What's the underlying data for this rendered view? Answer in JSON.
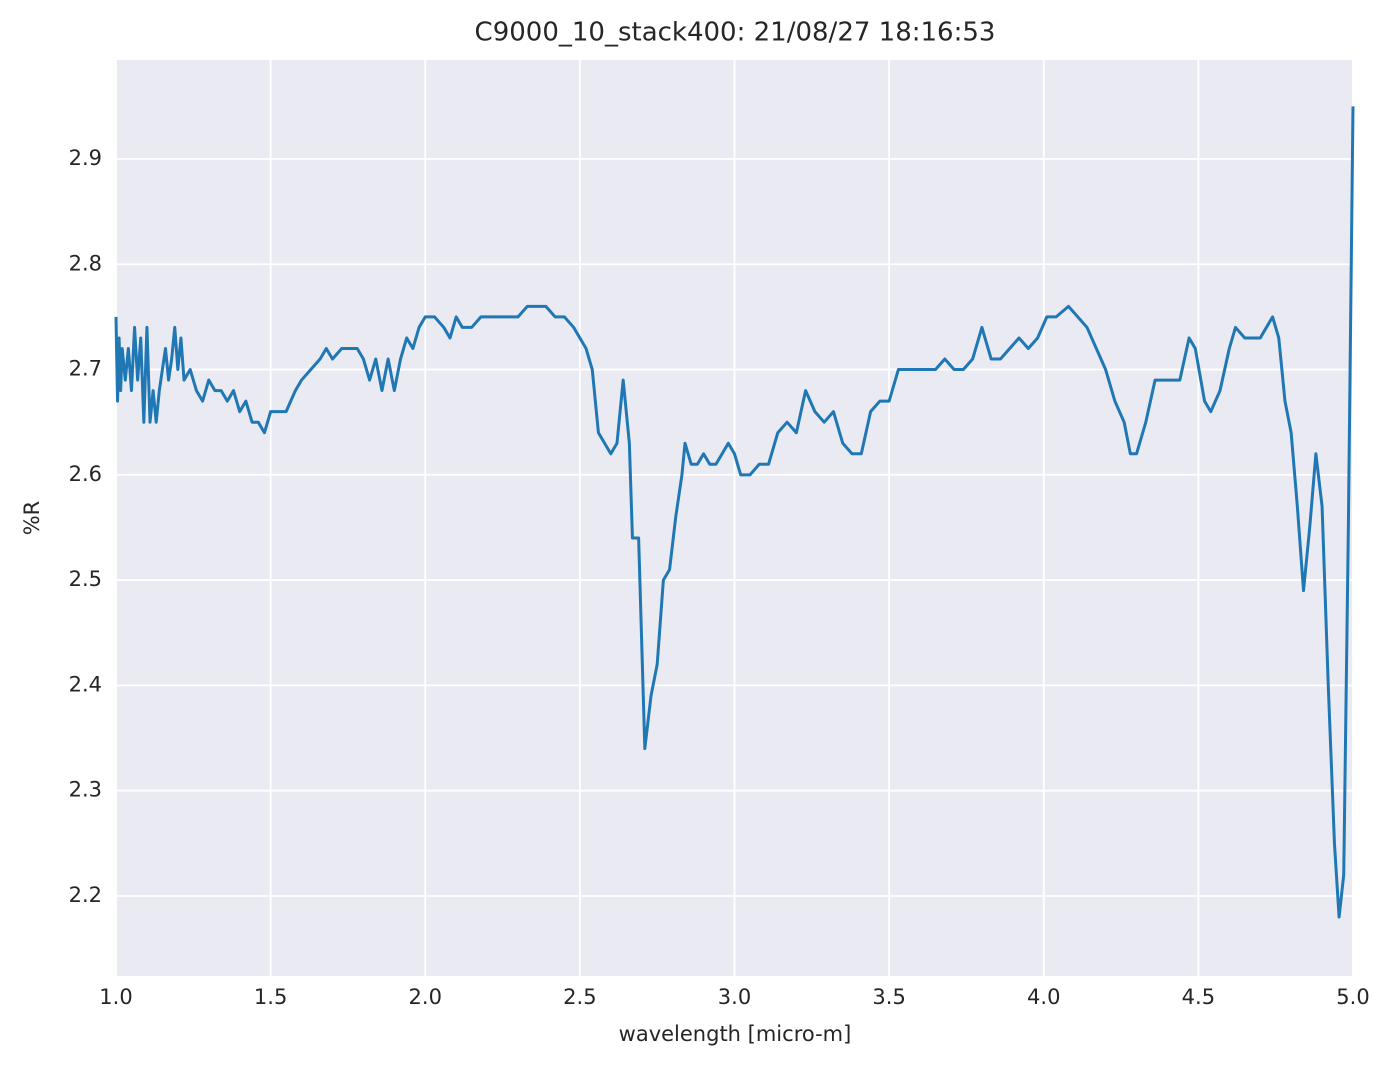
{
  "chart_data": {
    "type": "line",
    "title": "C9000_10_stack400:  21/08/27 18:16:53",
    "xlabel": "wavelength [micro-m]",
    "ylabel": "%R",
    "color": "#1f77b4",
    "grid": true,
    "xlim": [
      1.0,
      5.0
    ],
    "ylim": [
      2.124,
      2.994
    ],
    "xticks": [
      {
        "value": 1.0,
        "label": "1.0"
      },
      1.5,
      {
        "value": 2.0,
        "label": "2.0"
      },
      2.5,
      {
        "value": 3.0,
        "label": "3.0"
      },
      3.5,
      {
        "value": 4.0,
        "label": "4.0"
      },
      4.5,
      {
        "value": 5.0,
        "label": "5.0"
      }
    ],
    "yticks": [
      2.2,
      2.3,
      2.4,
      2.5,
      2.6,
      2.7,
      2.8,
      2.9
    ],
    "x": [
      1.0,
      1.005,
      1.01,
      1.015,
      1.02,
      1.03,
      1.04,
      1.05,
      1.06,
      1.07,
      1.08,
      1.09,
      1.1,
      1.11,
      1.12,
      1.13,
      1.14,
      1.15,
      1.16,
      1.17,
      1.18,
      1.19,
      1.2,
      1.21,
      1.22,
      1.24,
      1.26,
      1.28,
      1.3,
      1.32,
      1.34,
      1.36,
      1.38,
      1.4,
      1.42,
      1.44,
      1.46,
      1.48,
      1.5,
      1.52,
      1.55,
      1.58,
      1.6,
      1.63,
      1.66,
      1.68,
      1.7,
      1.73,
      1.76,
      1.78,
      1.8,
      1.82,
      1.84,
      1.86,
      1.88,
      1.9,
      1.92,
      1.94,
      1.96,
      1.98,
      2.0,
      2.03,
      2.06,
      2.08,
      2.1,
      2.12,
      2.15,
      2.18,
      2.21,
      2.24,
      2.27,
      2.3,
      2.33,
      2.36,
      2.39,
      2.42,
      2.45,
      2.48,
      2.5,
      2.52,
      2.54,
      2.56,
      2.58,
      2.6,
      2.62,
      2.64,
      2.66,
      2.67,
      2.69,
      2.71,
      2.73,
      2.75,
      2.77,
      2.79,
      2.81,
      2.83,
      2.84,
      2.86,
      2.88,
      2.9,
      2.92,
      2.94,
      2.96,
      2.98,
      3.0,
      3.02,
      3.05,
      3.08,
      3.11,
      3.14,
      3.17,
      3.2,
      3.23,
      3.26,
      3.29,
      3.32,
      3.35,
      3.38,
      3.41,
      3.44,
      3.47,
      3.5,
      3.53,
      3.56,
      3.59,
      3.62,
      3.65,
      3.68,
      3.71,
      3.74,
      3.77,
      3.8,
      3.83,
      3.86,
      3.89,
      3.92,
      3.95,
      3.98,
      4.01,
      4.04,
      4.08,
      4.11,
      4.14,
      4.17,
      4.2,
      4.23,
      4.26,
      4.28,
      4.3,
      4.33,
      4.36,
      4.39,
      4.42,
      4.44,
      4.47,
      4.49,
      4.52,
      4.54,
      4.57,
      4.6,
      4.62,
      4.65,
      4.7,
      4.72,
      4.74,
      4.76,
      4.78,
      4.8,
      4.82,
      4.84,
      4.86,
      4.88,
      4.9,
      4.92,
      4.94,
      4.955,
      4.97,
      4.985,
      5.0
    ],
    "values": [
      2.75,
      2.67,
      2.73,
      2.68,
      2.72,
      2.69,
      2.72,
      2.68,
      2.74,
      2.69,
      2.73,
      2.65,
      2.74,
      2.65,
      2.68,
      2.65,
      2.68,
      2.7,
      2.72,
      2.69,
      2.71,
      2.74,
      2.7,
      2.73,
      2.69,
      2.7,
      2.68,
      2.67,
      2.69,
      2.68,
      2.68,
      2.67,
      2.68,
      2.66,
      2.67,
      2.65,
      2.65,
      2.64,
      2.66,
      2.66,
      2.66,
      2.68,
      2.69,
      2.7,
      2.71,
      2.72,
      2.71,
      2.72,
      2.72,
      2.72,
      2.71,
      2.69,
      2.71,
      2.68,
      2.71,
      2.68,
      2.71,
      2.73,
      2.72,
      2.74,
      2.75,
      2.75,
      2.74,
      2.73,
      2.75,
      2.74,
      2.74,
      2.75,
      2.75,
      2.75,
      2.75,
      2.75,
      2.76,
      2.76,
      2.76,
      2.75,
      2.75,
      2.74,
      2.73,
      2.72,
      2.7,
      2.64,
      2.63,
      2.62,
      2.63,
      2.69,
      2.63,
      2.54,
      2.54,
      2.34,
      2.39,
      2.42,
      2.5,
      2.51,
      2.56,
      2.6,
      2.63,
      2.61,
      2.61,
      2.62,
      2.61,
      2.61,
      2.62,
      2.63,
      2.62,
      2.6,
      2.6,
      2.61,
      2.61,
      2.64,
      2.65,
      2.64,
      2.68,
      2.66,
      2.65,
      2.66,
      2.63,
      2.62,
      2.62,
      2.66,
      2.67,
      2.67,
      2.7,
      2.7,
      2.7,
      2.7,
      2.7,
      2.71,
      2.7,
      2.7,
      2.71,
      2.74,
      2.71,
      2.71,
      2.72,
      2.73,
      2.72,
      2.73,
      2.75,
      2.75,
      2.76,
      2.75,
      2.74,
      2.72,
      2.7,
      2.67,
      2.65,
      2.62,
      2.62,
      2.65,
      2.69,
      2.69,
      2.69,
      2.69,
      2.73,
      2.72,
      2.67,
      2.66,
      2.68,
      2.72,
      2.74,
      2.73,
      2.73,
      2.74,
      2.75,
      2.73,
      2.67,
      2.64,
      2.57,
      2.49,
      2.55,
      2.62,
      2.57,
      2.4,
      2.25,
      2.18,
      2.22,
      2.55,
      2.95
    ]
  }
}
